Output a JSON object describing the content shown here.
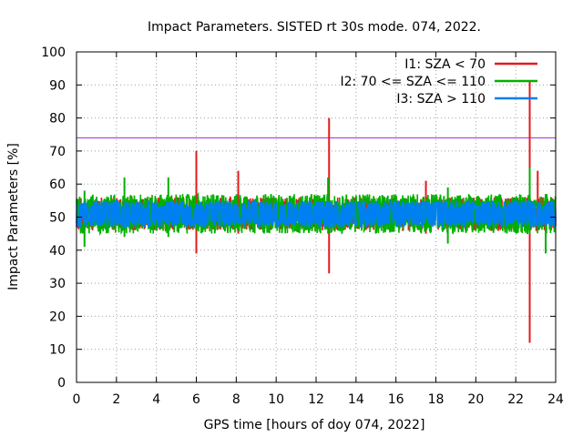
{
  "chart_data": {
    "type": "line",
    "title": "Impact Parameters. SISTED rt 30s mode. 074, 2022.",
    "xlabel": "GPS time [hours of doy 074, 2022]",
    "ylabel": "Impact Parameters [%]",
    "xlim": [
      0,
      24
    ],
    "ylim": [
      0,
      100
    ],
    "xticks": [
      "0",
      "2",
      "4",
      "6",
      "8",
      "10",
      "12",
      "14",
      "16",
      "18",
      "20",
      "22",
      "24"
    ],
    "yticks": [
      "0",
      "10",
      "20",
      "30",
      "40",
      "50",
      "60",
      "70",
      "80",
      "90",
      "100"
    ],
    "grid": true,
    "legend_position": "top-right",
    "threshold": {
      "value": 74,
      "color": "#a020f0"
    },
    "series": [
      {
        "name": "I1: SZA < 70",
        "color": "#e41a1c",
        "center": 51,
        "spread": 5,
        "spikes": [
          {
            "x": 6.0,
            "low": 39,
            "high": 70
          },
          {
            "x": 8.1,
            "low": 45,
            "high": 64
          },
          {
            "x": 12.65,
            "low": 33,
            "high": 80
          },
          {
            "x": 17.5,
            "low": 45,
            "high": 61
          },
          {
            "x": 22.7,
            "low": 12,
            "high": 91
          },
          {
            "x": 23.1,
            "low": 46,
            "high": 64
          }
        ]
      },
      {
        "name": "I2: 70 <= SZA <= 110",
        "color": "#00b000",
        "center": 51,
        "spread": 6,
        "spikes": [
          {
            "x": 0.4,
            "low": 41,
            "high": 58
          },
          {
            "x": 2.4,
            "low": 44,
            "high": 62
          },
          {
            "x": 4.6,
            "low": 44,
            "high": 62
          },
          {
            "x": 12.6,
            "low": 45,
            "high": 62
          },
          {
            "x": 18.6,
            "low": 42,
            "high": 59
          },
          {
            "x": 22.7,
            "low": 45,
            "high": 65
          },
          {
            "x": 23.5,
            "low": 39,
            "high": 57
          }
        ]
      },
      {
        "name": "I3: SZA > 110",
        "color": "#0080f0",
        "center": 51,
        "spread": 4,
        "spikes": []
      }
    ]
  }
}
